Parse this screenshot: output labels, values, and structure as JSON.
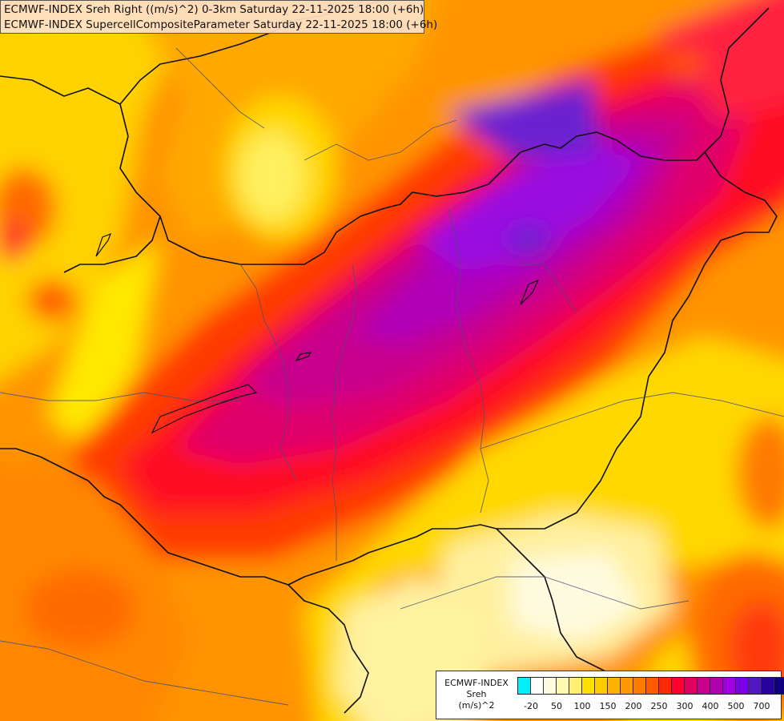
{
  "title": {
    "line1": "ECMWF-INDEX Sreh Right ((m/s)^2) 0-3km Saturday 22-11-2025 18:00 (+6h)",
    "line2": "ECMWF-INDEX SupercellCompositeParameter Saturday 22-11-2025 18:00 (+6h)"
  },
  "legend": {
    "line1": "ECMWF-INDEX",
    "line2": "Sreh",
    "line3": "(m/s)^2",
    "colors": [
      "#00f0ff",
      "#ffffff",
      "#fffbe0",
      "#fff8b0",
      "#fff070",
      "#ffe000",
      "#ffcc00",
      "#ffb000",
      "#ff9800",
      "#ff7a00",
      "#ff5a00",
      "#ff2a00",
      "#ff0030",
      "#e00060",
      "#c8008c",
      "#b000b0",
      "#a000e0",
      "#7a00e8",
      "#5018c0",
      "#2800a0",
      "#100080"
    ],
    "ticks": [
      "-20",
      "50",
      "100",
      "150",
      "200",
      "250",
      "300",
      "400",
      "500",
      "700"
    ]
  }
}
